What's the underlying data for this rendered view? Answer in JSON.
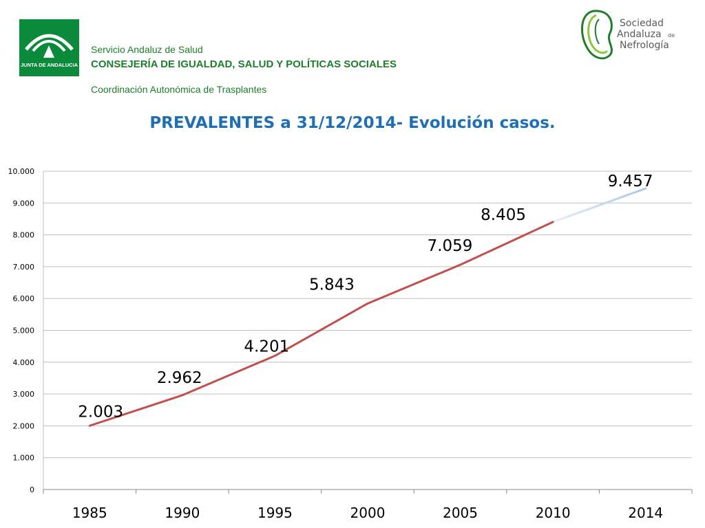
{
  "header": {
    "org_line1": "Servicio Andaluz de Salud",
    "org_line2": "CONSEJERÍA DE IGUALDAD, SALUD Y POLÍTICAS SOCIALES",
    "org_line3": "Coordinación Autonómica de Trasplantes",
    "logo_left_text": "JUNTA DE ANDALUCIA",
    "logo_right_lines": [
      "Sociedad",
      "Andaluza",
      "de",
      "Nefrología"
    ]
  },
  "colors": {
    "junta_green": "#0b8a3c",
    "header_text": "#1e7d2b",
    "title": "#1f6fb6",
    "line_main": "#c0504d",
    "line_projection": "#a9c6e8",
    "grid": "#bfbfbf"
  },
  "chart_data": {
    "type": "line",
    "title": "PREVALENTES a 31/12/2014- Evolución casos.",
    "categories": [
      "1985",
      "1990",
      "1995",
      "2000",
      "2005",
      "2010",
      "2014"
    ],
    "values": [
      2003,
      2962,
      4201,
      5843,
      7059,
      8405,
      9457
    ],
    "value_labels": [
      "2.003",
      "2.962",
      "4.201",
      "5.843",
      "7.059",
      "8.405",
      "9.457"
    ],
    "y_ticks": [
      "0",
      "1.000",
      "2.000",
      "3.000",
      "4.000",
      "5.000",
      "6.000",
      "7.000",
      "8.000",
      "9.000",
      "10.000"
    ],
    "ylim": [
      0,
      10000
    ],
    "y_step": 1000,
    "grid": true,
    "legend": "none"
  }
}
